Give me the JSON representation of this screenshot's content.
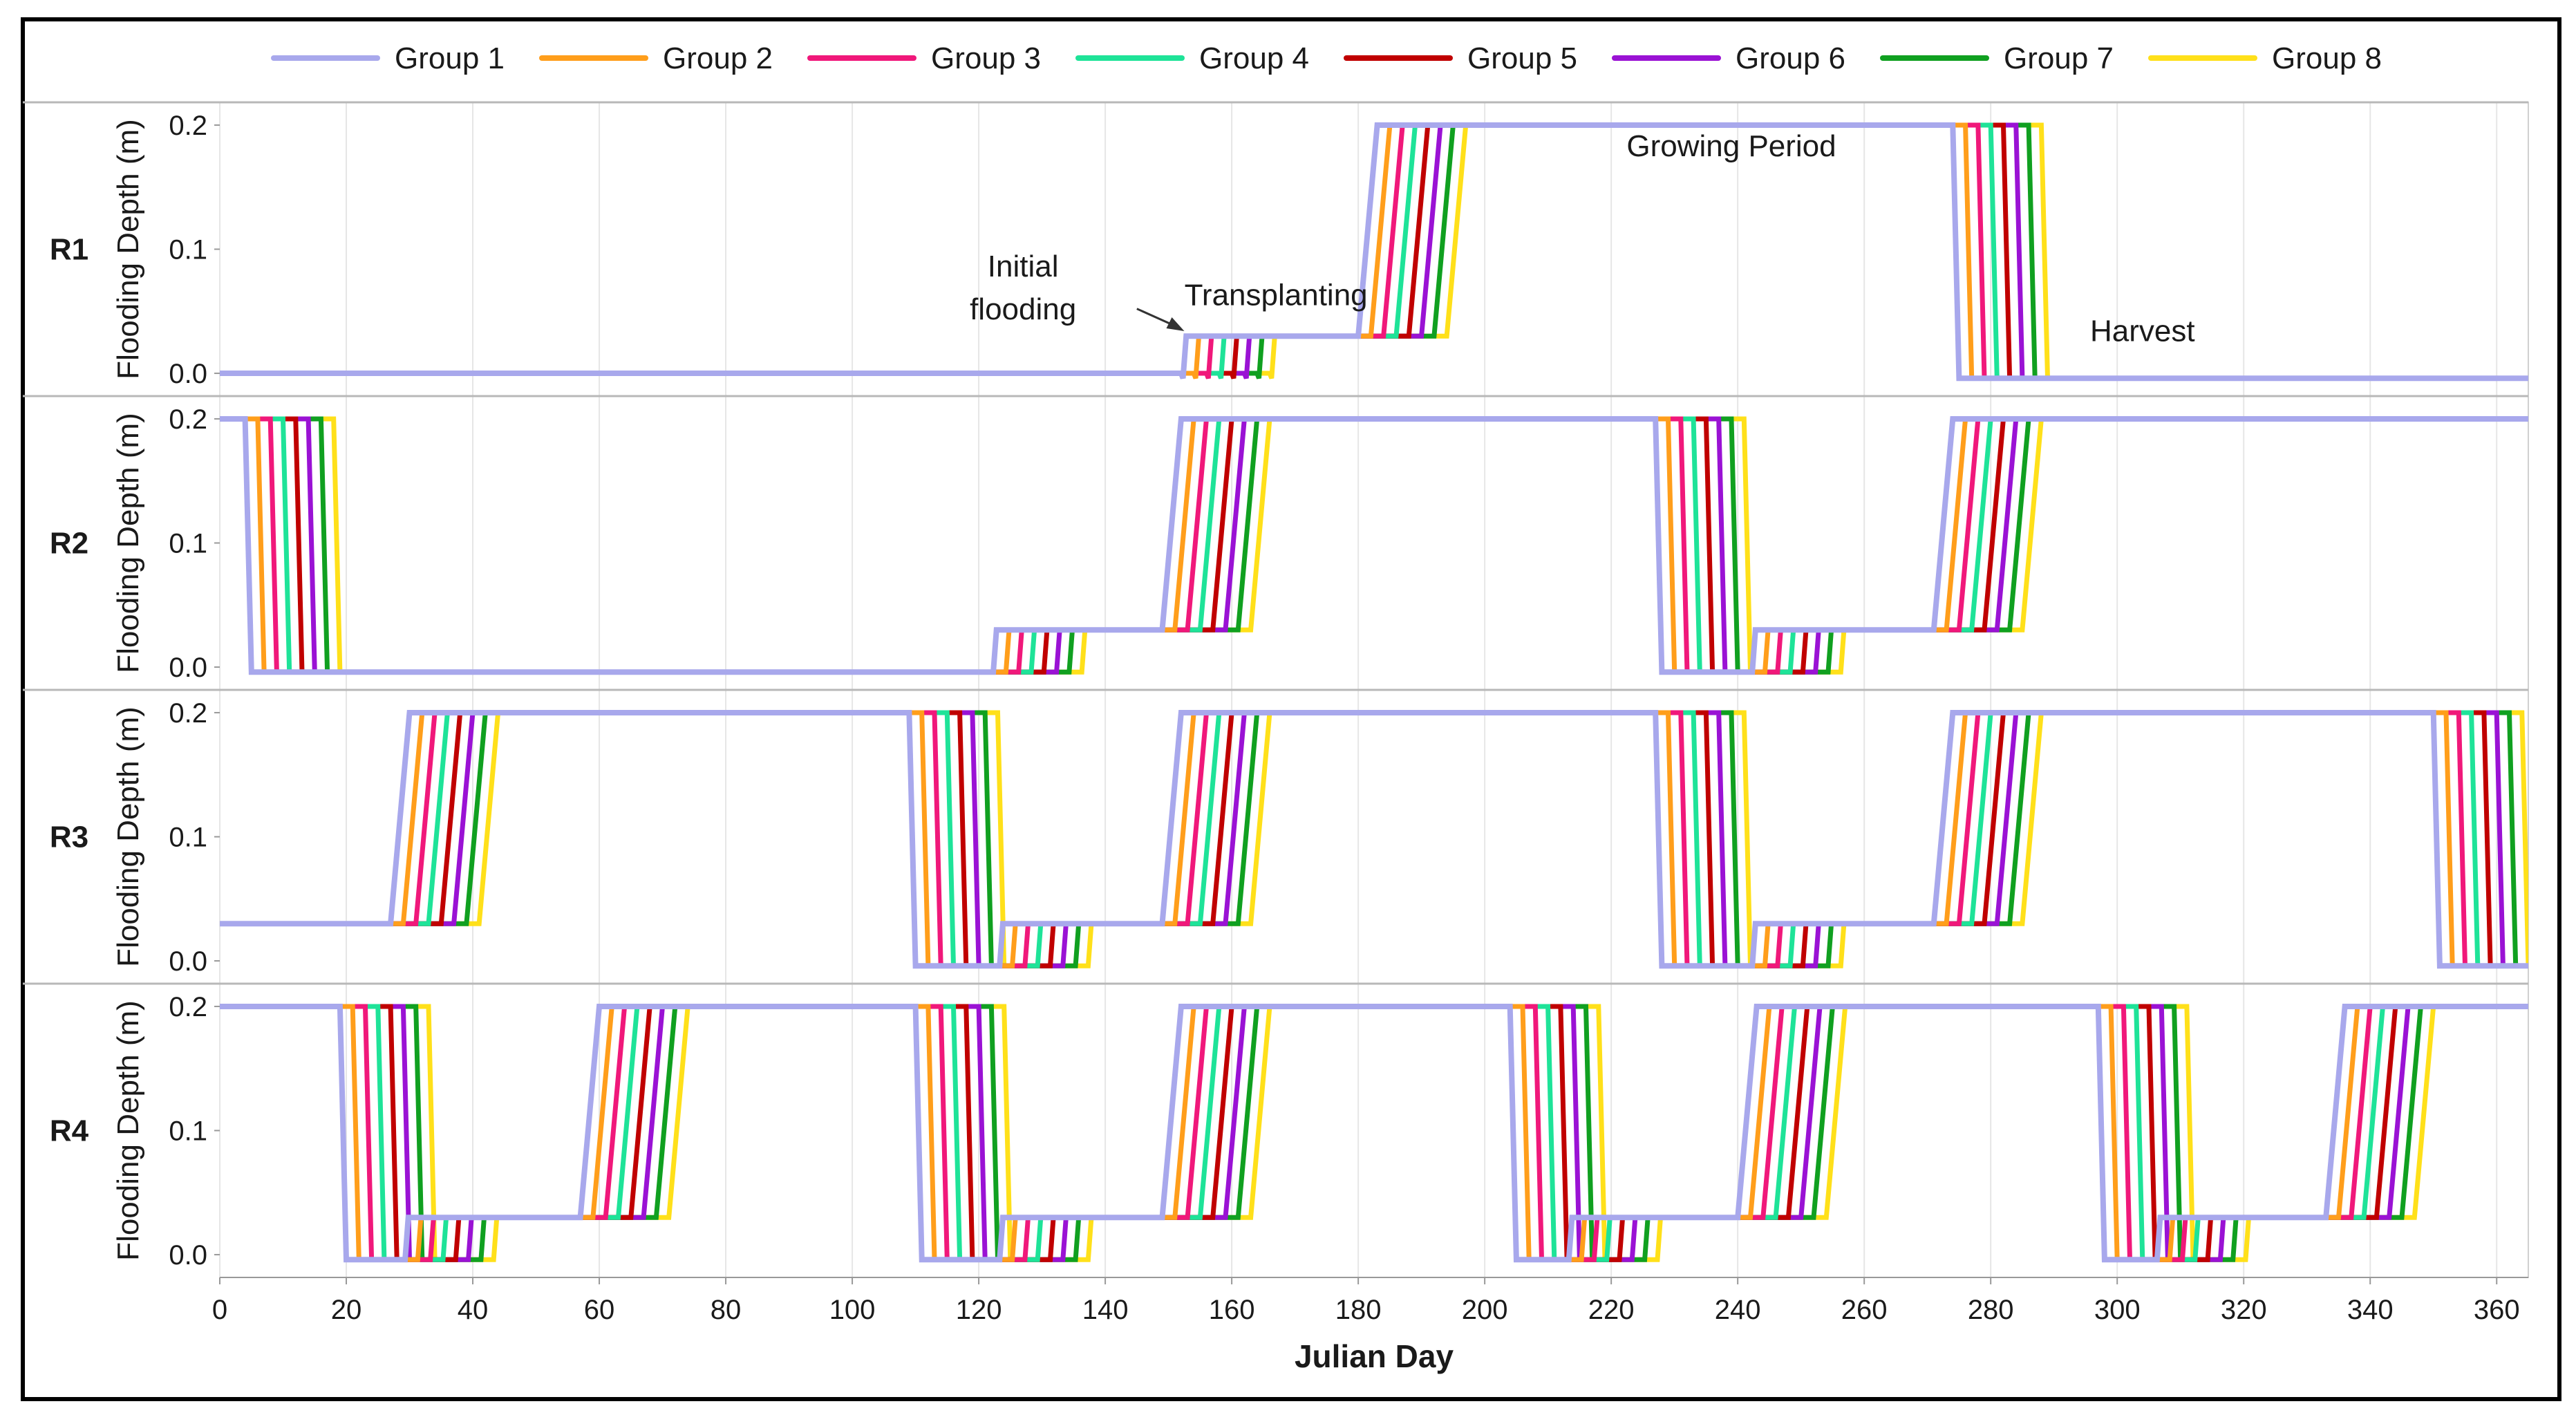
{
  "chart_data": {
    "type": "line",
    "title": "",
    "xlabel": "Julian Day",
    "ylabel": "Flooding Depth (m)",
    "xlim": [
      0,
      365
    ],
    "ylim": [
      -0.01,
      0.21
    ],
    "x_ticks": [
      0,
      20,
      40,
      60,
      80,
      100,
      120,
      140,
      160,
      180,
      200,
      220,
      240,
      260,
      280,
      300,
      320,
      340,
      360
    ],
    "y_ticks": [
      0.0,
      0.1,
      0.2
    ],
    "y_tick_labels": [
      "0.0",
      "0.1",
      "0.2"
    ],
    "legend_position": "top",
    "series": [
      {
        "name": "Group 1",
        "color": "#a8a8ec",
        "offset_days": 0
      },
      {
        "name": "Group 2",
        "color": "#ff9e1b",
        "offset_days": 2
      },
      {
        "name": "Group 3",
        "color": "#f0187a",
        "offset_days": 4
      },
      {
        "name": "Group 4",
        "color": "#1ee398",
        "offset_days": 6
      },
      {
        "name": "Group 5",
        "color": "#c00000",
        "offset_days": 8
      },
      {
        "name": "Group 6",
        "color": "#9a12d4",
        "offset_days": 10
      },
      {
        "name": "Group 7",
        "color": "#10a020",
        "offset_days": 12
      },
      {
        "name": "Group 8",
        "color": "#ffe01a",
        "offset_days": 14
      }
    ],
    "panels": [
      {
        "label": "R1",
        "start_level": "low",
        "events": [
          {
            "type": "initial",
            "day": 152
          },
          {
            "type": "full",
            "day": 180
          },
          {
            "type": "harvest",
            "day": 274
          }
        ]
      },
      {
        "label": "R2",
        "start_level": "full",
        "events": [
          {
            "type": "harvest",
            "day": 4
          },
          {
            "type": "initial",
            "day": 122
          },
          {
            "type": "full",
            "day": 149
          },
          {
            "type": "harvest",
            "day": 227
          },
          {
            "type": "initial",
            "day": 242
          },
          {
            "type": "full",
            "day": 271
          }
        ]
      },
      {
        "label": "R3",
        "start_level": "initial",
        "events": [
          {
            "type": "full",
            "day": 27
          },
          {
            "type": "harvest",
            "day": 109
          },
          {
            "type": "initial",
            "day": 123
          },
          {
            "type": "full",
            "day": 149
          },
          {
            "type": "harvest",
            "day": 227
          },
          {
            "type": "initial",
            "day": 242
          },
          {
            "type": "full",
            "day": 271
          },
          {
            "type": "harvest",
            "day": 350
          }
        ]
      },
      {
        "label": "R4",
        "start_level": "full",
        "events": [
          {
            "type": "harvest",
            "day": 19
          },
          {
            "type": "initial",
            "day": 29
          },
          {
            "type": "full",
            "day": 57
          },
          {
            "type": "harvest",
            "day": 110
          },
          {
            "type": "initial",
            "day": 123
          },
          {
            "type": "full",
            "day": 149
          },
          {
            "type": "harvest",
            "day": 204
          },
          {
            "type": "initial",
            "day": 213
          },
          {
            "type": "full",
            "day": 240
          },
          {
            "type": "harvest",
            "day": 297
          },
          {
            "type": "initial",
            "day": 306
          },
          {
            "type": "full",
            "day": 333
          }
        ]
      }
    ],
    "levels": {
      "low": 0.0,
      "zero": -0.004,
      "initial": 0.03,
      "full": 0.2
    },
    "annotations": [
      {
        "panel": 0,
        "lines": [
          "Initial",
          "flooding"
        ],
        "x_day": 127,
        "y_value": 0.078
      },
      {
        "panel": 0,
        "lines": [
          "Transplanting"
        ],
        "x_day": 167,
        "y_value": 0.055
      },
      {
        "panel": 0,
        "lines": [
          "Growing Period"
        ],
        "x_day": 239,
        "y_value": 0.175
      },
      {
        "panel": 0,
        "lines": [
          "Harvest"
        ],
        "x_day": 304,
        "y_value": 0.026
      }
    ]
  }
}
